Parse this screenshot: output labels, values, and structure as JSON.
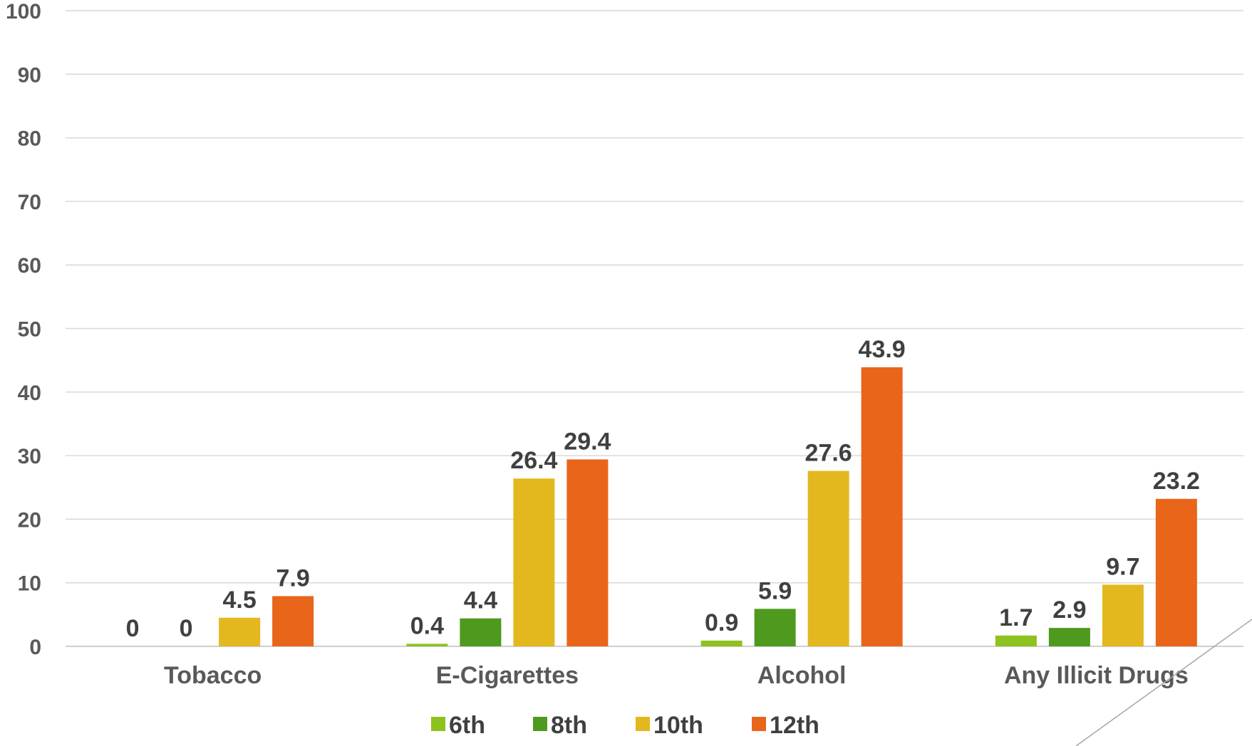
{
  "chart_data": {
    "type": "bar",
    "categories": [
      "Tobacco",
      "E-Cigarettes",
      "Alcohol",
      "Any Illicit Drugs"
    ],
    "series": [
      {
        "name": "6th",
        "color": "#8dc21f",
        "values": [
          0,
          0.4,
          0.9,
          1.7
        ]
      },
      {
        "name": "8th",
        "color": "#4e9a1e",
        "values": [
          0,
          4.4,
          5.9,
          2.9
        ]
      },
      {
        "name": "10th",
        "color": "#e3b81e",
        "values": [
          4.5,
          26.4,
          27.6,
          9.7
        ]
      },
      {
        "name": "12th",
        "color": "#e8651a",
        "values": [
          7.9,
          29.4,
          43.9,
          23.2
        ]
      }
    ],
    "ylim": [
      0,
      100
    ],
    "yticks": [
      0,
      10,
      20,
      30,
      40,
      50,
      60,
      70,
      80,
      90,
      100
    ],
    "grid": true,
    "legend": "bottom",
    "data_labels": true
  }
}
